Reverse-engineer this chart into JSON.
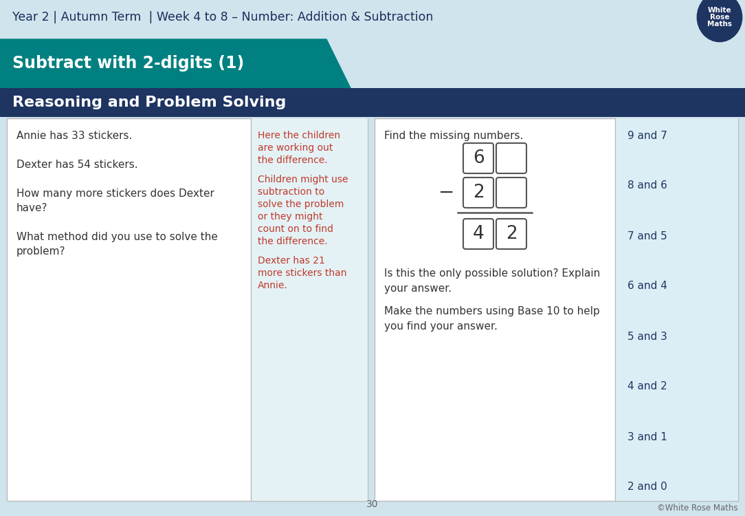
{
  "bg_color": "#cfe4ed",
  "header_text": "Year 2 | Autumn Term  | Week 4 to 8 – Number: Addition & Subtraction",
  "header_text_color": "#1a2e5a",
  "teal_banner_color": "#008080",
  "teal_banner_text": "Subtract with 2-digits (1)",
  "navy_banner_color": "#1e3461",
  "navy_banner_text": "Reasoning and Problem Solving",
  "left_panel_text_lines": [
    [
      "Annie has 33 stickers.",
      0
    ],
    [
      "Dexter has 54 stickers.",
      2
    ],
    [
      "How many more stickers does Dexter",
      4
    ],
    [
      "have?",
      5
    ],
    [
      "What method did you use to solve the",
      7
    ],
    [
      "problem?",
      8
    ]
  ],
  "middle_left_bg": "#e4f2f5",
  "middle_left_text_blocks": [
    "Here the children\nare working out\nthe difference.",
    "Children might use\nsubtraction to\nsolve the problem\nor they might\ncount on to find\nthe difference.",
    "Dexter has 21\nmore stickers than\nAnnie."
  ],
  "red_text_color": "#c0392b",
  "dark_text_color": "#333333",
  "answers_list": [
    "9 and 7",
    "8 and 6",
    "7 and 5",
    "6 and 4",
    "5 and 3",
    "4 and 2",
    "3 and 1",
    "2 and 0"
  ],
  "answers_color": "#1e3461",
  "answers_bg": "#dceef5",
  "page_number": "30",
  "copyright": "©White Rose Maths"
}
